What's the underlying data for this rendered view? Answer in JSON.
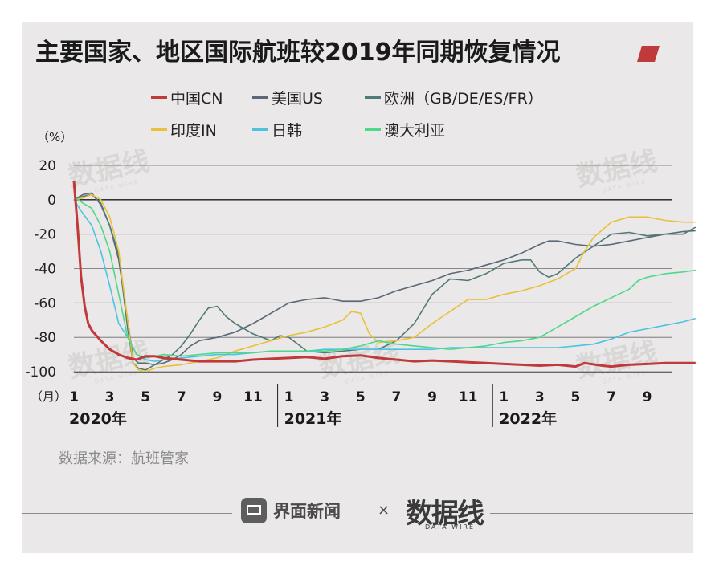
{
  "title": "主要国家、地区国际航班较2019年同期恢复情况",
  "unit_label": "（%）",
  "source": "数据来源：航班管家",
  "footer": {
    "brand": "界面新闻",
    "times": "×",
    "partner": "数据线",
    "partner_sub": "DATA WIRE"
  },
  "watermark": {
    "text": "数据线",
    "sub": "DATA WIRE"
  },
  "colors": {
    "accent": "#c0393b",
    "axis": "#1a1a1a"
  },
  "chart_data": {
    "type": "line",
    "title": "主要国家、地区国际航班较2019年同期恢复情况",
    "xlabel": "（月）",
    "ylabel": "（%）",
    "ylim": [
      -100,
      20
    ],
    "yticks": [
      "20",
      "0",
      "-20",
      "-40",
      "-60",
      "-80",
      "-100"
    ],
    "x_month_ticks": [
      "1",
      "3",
      "5",
      "7",
      "9",
      "11",
      "1",
      "3",
      "5",
      "7",
      "9",
      "11",
      "1",
      "3",
      "5",
      "7",
      "9"
    ],
    "year_labels": [
      "2020年",
      "2021年",
      "2022年"
    ],
    "x_range": [
      "2020-01",
      "2022-10"
    ],
    "grid": true,
    "legend_position": "top",
    "series": [
      {
        "name": "中国CN",
        "color": "#c0393b",
        "points": [
          [
            0,
            11
          ],
          [
            0.2,
            -15
          ],
          [
            0.4,
            -45
          ],
          [
            0.6,
            -62
          ],
          [
            0.8,
            -72
          ],
          [
            1,
            -76
          ],
          [
            1.5,
            -82
          ],
          [
            2,
            -87
          ],
          [
            2.5,
            -90
          ],
          [
            3,
            -92
          ],
          [
            3.5,
            -93
          ],
          [
            4,
            -91
          ],
          [
            4.5,
            -91
          ],
          [
            5,
            -92
          ],
          [
            6,
            -93
          ],
          [
            7,
            -94
          ],
          [
            8,
            -94
          ],
          [
            9,
            -94
          ],
          [
            10,
            -93
          ],
          [
            11,
            -92.5
          ],
          [
            12,
            -92
          ],
          [
            13,
            -91.5
          ],
          [
            14,
            -92.5
          ],
          [
            15,
            -91
          ],
          [
            16,
            -90.5
          ],
          [
            17,
            -92
          ],
          [
            18,
            -93
          ],
          [
            19,
            -94
          ],
          [
            20,
            -93.5
          ],
          [
            21,
            -94
          ],
          [
            22,
            -94.5
          ],
          [
            23,
            -95
          ],
          [
            24,
            -95.5
          ],
          [
            25,
            -96
          ],
          [
            26,
            -96.5
          ],
          [
            27,
            -96
          ],
          [
            28,
            -97
          ],
          [
            28.5,
            -95
          ],
          [
            29.5,
            -96.5
          ],
          [
            30,
            -97
          ],
          [
            31,
            -96
          ],
          [
            32,
            -95.5
          ],
          [
            33,
            -95
          ],
          [
            34,
            -95
          ],
          [
            34.7,
            -95
          ]
        ]
      },
      {
        "name": "美国US",
        "color": "#5a6878",
        "points": [
          [
            0,
            0
          ],
          [
            0.5,
            3
          ],
          [
            1,
            4
          ],
          [
            1.5,
            -3
          ],
          [
            2,
            -15
          ],
          [
            2.5,
            -35
          ],
          [
            3,
            -70
          ],
          [
            3.3,
            -92
          ],
          [
            3.6,
            -95
          ],
          [
            4,
            -95
          ],
          [
            4.5,
            -96
          ],
          [
            5,
            -95
          ],
          [
            5.5,
            -93
          ],
          [
            6,
            -90
          ],
          [
            6.5,
            -85
          ],
          [
            7,
            -82
          ],
          [
            8,
            -80
          ],
          [
            9,
            -77
          ],
          [
            10,
            -72
          ],
          [
            11,
            -66
          ],
          [
            12,
            -60
          ],
          [
            13,
            -58
          ],
          [
            14,
            -57
          ],
          [
            15,
            -59
          ],
          [
            16,
            -59
          ],
          [
            17,
            -57
          ],
          [
            18,
            -53
          ],
          [
            19,
            -50
          ],
          [
            20,
            -47
          ],
          [
            21,
            -43
          ],
          [
            22,
            -41
          ],
          [
            23,
            -38
          ],
          [
            24,
            -35
          ],
          [
            25,
            -31
          ],
          [
            26,
            -26
          ],
          [
            26.5,
            -24
          ],
          [
            27,
            -24
          ],
          [
            28,
            -26
          ],
          [
            29,
            -27
          ],
          [
            30,
            -26
          ],
          [
            31,
            -24
          ],
          [
            32,
            -22
          ],
          [
            33,
            -20
          ],
          [
            34,
            -18.5
          ],
          [
            34.7,
            -18
          ]
        ]
      },
      {
        "name": "欧洲（GB/DE/ES/FR）",
        "color": "#4f7a76",
        "points": [
          [
            0,
            0
          ],
          [
            0.5,
            2
          ],
          [
            1,
            3
          ],
          [
            1.5,
            -2
          ],
          [
            2,
            -15
          ],
          [
            2.5,
            -32
          ],
          [
            3,
            -75
          ],
          [
            3.3,
            -95
          ],
          [
            3.6,
            -98
          ],
          [
            4,
            -99
          ],
          [
            4.5,
            -96
          ],
          [
            5,
            -93
          ],
          [
            5.5,
            -90
          ],
          [
            6,
            -85
          ],
          [
            6.5,
            -78
          ],
          [
            7,
            -70
          ],
          [
            7.5,
            -63
          ],
          [
            8,
            -62
          ],
          [
            8.5,
            -68
          ],
          [
            9,
            -72
          ],
          [
            10,
            -78
          ],
          [
            11,
            -82
          ],
          [
            11.5,
            -79
          ],
          [
            12,
            -80
          ],
          [
            12.5,
            -84
          ],
          [
            13,
            -88
          ],
          [
            14,
            -89
          ],
          [
            15,
            -88
          ],
          [
            16,
            -87
          ],
          [
            17,
            -87
          ],
          [
            18,
            -82
          ],
          [
            19,
            -72
          ],
          [
            20,
            -55
          ],
          [
            21,
            -46
          ],
          [
            22,
            -47
          ],
          [
            23,
            -43
          ],
          [
            24,
            -37
          ],
          [
            25,
            -35
          ],
          [
            25.5,
            -35
          ],
          [
            26,
            -42
          ],
          [
            26.5,
            -45
          ],
          [
            27,
            -43
          ],
          [
            28,
            -34
          ],
          [
            29,
            -27
          ],
          [
            30,
            -20
          ],
          [
            31,
            -19
          ],
          [
            32,
            -21
          ],
          [
            33,
            -20
          ],
          [
            34,
            -20
          ],
          [
            34.7,
            -16
          ]
        ]
      },
      {
        "name": "印度IN",
        "color": "#e8c13a",
        "points": [
          [
            0,
            0
          ],
          [
            0.5,
            1
          ],
          [
            1,
            3
          ],
          [
            1.5,
            0
          ],
          [
            2,
            -10
          ],
          [
            2.5,
            -30
          ],
          [
            3,
            -70
          ],
          [
            3.3,
            -95
          ],
          [
            3.6,
            -99
          ],
          [
            4,
            -100
          ],
          [
            4.5,
            -98
          ],
          [
            5,
            -97
          ],
          [
            6,
            -96
          ],
          [
            7,
            -94
          ],
          [
            8,
            -92
          ],
          [
            9,
            -88
          ],
          [
            10,
            -85
          ],
          [
            11,
            -82
          ],
          [
            12,
            -79
          ],
          [
            13,
            -77
          ],
          [
            14,
            -74
          ],
          [
            15,
            -70
          ],
          [
            15.5,
            -65
          ],
          [
            16,
            -66
          ],
          [
            16.5,
            -78
          ],
          [
            17,
            -83
          ],
          [
            18,
            -82
          ],
          [
            19,
            -80
          ],
          [
            20,
            -72
          ],
          [
            21,
            -65
          ],
          [
            22,
            -58
          ],
          [
            23,
            -58
          ],
          [
            24,
            -55
          ],
          [
            25,
            -53
          ],
          [
            26,
            -50
          ],
          [
            27,
            -46
          ],
          [
            28,
            -40
          ],
          [
            28.5,
            -30
          ],
          [
            29,
            -22
          ],
          [
            30,
            -13
          ],
          [
            31,
            -10
          ],
          [
            32,
            -10
          ],
          [
            33,
            -12
          ],
          [
            34,
            -13
          ],
          [
            34.7,
            -13
          ]
        ]
      },
      {
        "name": "日韩",
        "color": "#4cc3e0",
        "points": [
          [
            0,
            0
          ],
          [
            0.5,
            -8
          ],
          [
            1,
            -15
          ],
          [
            1.5,
            -30
          ],
          [
            2,
            -50
          ],
          [
            2.5,
            -72
          ],
          [
            3,
            -80
          ],
          [
            3.5,
            -90
          ],
          [
            4,
            -93
          ],
          [
            4.5,
            -94
          ],
          [
            5,
            -93
          ],
          [
            6,
            -92
          ],
          [
            7,
            -91
          ],
          [
            8,
            -90
          ],
          [
            9,
            -90
          ],
          [
            10,
            -89
          ],
          [
            11,
            -88
          ],
          [
            12,
            -88
          ],
          [
            13,
            -88
          ],
          [
            14,
            -87
          ],
          [
            15,
            -87
          ],
          [
            16,
            -87
          ],
          [
            17,
            -87
          ],
          [
            18,
            -87
          ],
          [
            19,
            -87
          ],
          [
            20,
            -87
          ],
          [
            21,
            -86
          ],
          [
            22,
            -86
          ],
          [
            23,
            -86
          ],
          [
            24,
            -86
          ],
          [
            25,
            -86
          ],
          [
            26,
            -86
          ],
          [
            27,
            -86
          ],
          [
            28,
            -85
          ],
          [
            29,
            -84
          ],
          [
            30,
            -81
          ],
          [
            31,
            -77
          ],
          [
            32,
            -75
          ],
          [
            33,
            -73
          ],
          [
            34,
            -71
          ],
          [
            34.7,
            -69
          ]
        ]
      },
      {
        "name": "澳大利亚",
        "color": "#4ed98a",
        "points": [
          [
            0,
            2
          ],
          [
            0.5,
            -2
          ],
          [
            1,
            -5
          ],
          [
            1.5,
            -15
          ],
          [
            2,
            -30
          ],
          [
            2.5,
            -55
          ],
          [
            3,
            -80
          ],
          [
            3.5,
            -90
          ],
          [
            4,
            -92
          ],
          [
            4.5,
            -91
          ],
          [
            5,
            -90
          ],
          [
            6,
            -91
          ],
          [
            7,
            -90
          ],
          [
            8,
            -89
          ],
          [
            9,
            -89
          ],
          [
            10,
            -89
          ],
          [
            11,
            -88
          ],
          [
            12,
            -88
          ],
          [
            13,
            -88
          ],
          [
            14,
            -88
          ],
          [
            15,
            -87
          ],
          [
            16,
            -85
          ],
          [
            17,
            -82
          ],
          [
            18,
            -84
          ],
          [
            19,
            -85
          ],
          [
            20,
            -86
          ],
          [
            21,
            -87
          ],
          [
            22,
            -86
          ],
          [
            23,
            -85
          ],
          [
            24,
            -83
          ],
          [
            25,
            -82
          ],
          [
            26,
            -80
          ],
          [
            27,
            -74
          ],
          [
            28,
            -68
          ],
          [
            29,
            -62
          ],
          [
            30,
            -57
          ],
          [
            31,
            -52
          ],
          [
            31.5,
            -47
          ],
          [
            32,
            -45
          ],
          [
            32.5,
            -44
          ],
          [
            33,
            -43
          ],
          [
            34,
            -42
          ],
          [
            34.7,
            -41
          ]
        ]
      }
    ]
  }
}
